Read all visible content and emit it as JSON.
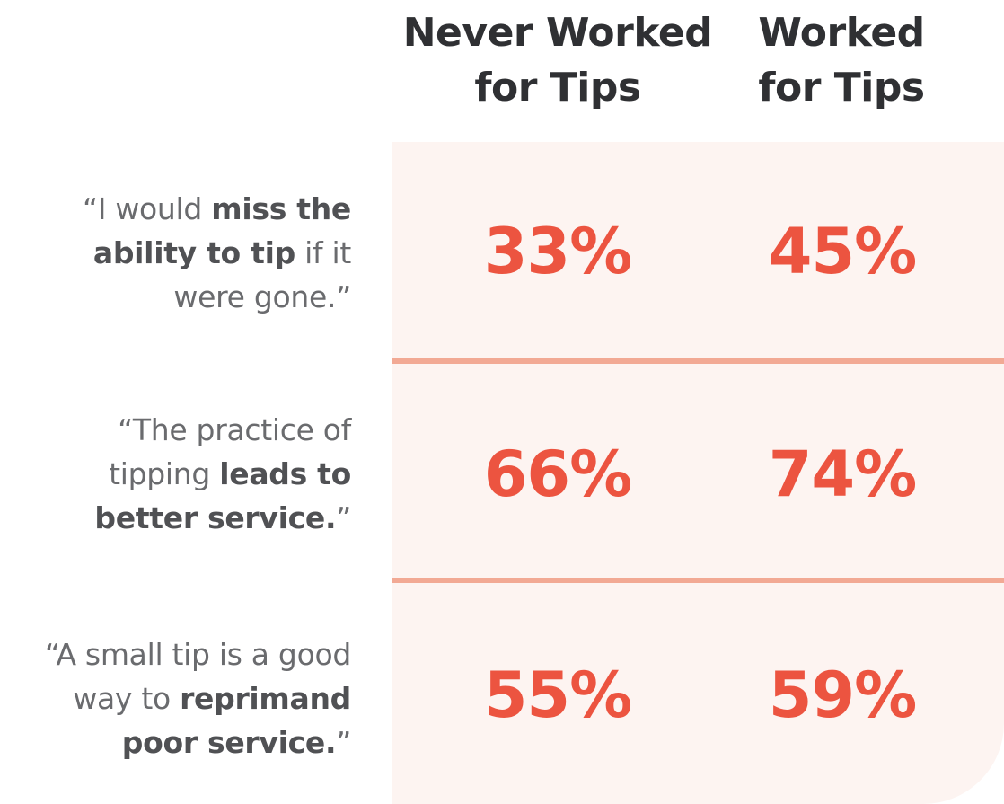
{
  "chart_data": {
    "type": "table",
    "columns": [
      "Never Worked for Tips",
      "Worked for Tips"
    ],
    "column_header_lines": [
      [
        "Never Worked",
        "for Tips"
      ],
      [
        "Worked",
        "for Tips"
      ]
    ],
    "rows": [
      {
        "statement": "“I would miss the ability to tip if it were gone.”",
        "statement_lines": [
          [
            {
              "t": "“I would ",
              "b": false
            },
            {
              "t": "miss the",
              "b": true
            }
          ],
          [
            {
              "t": "ability to tip",
              "b": true
            },
            {
              "t": " if it",
              "b": false
            }
          ],
          [
            {
              "t": "were gone.”",
              "b": false
            }
          ]
        ],
        "values": [
          33,
          45
        ],
        "labels": [
          "33%",
          "45%"
        ]
      },
      {
        "statement": "“The practice of tipping leads to better service.”",
        "statement_lines": [
          [
            {
              "t": "“The practice of",
              "b": false
            }
          ],
          [
            {
              "t": "tipping ",
              "b": false
            },
            {
              "t": "leads to",
              "b": true
            }
          ],
          [
            {
              "t": "better service.",
              "b": true
            },
            {
              "t": "”",
              "b": false
            }
          ]
        ],
        "values": [
          66,
          74
        ],
        "labels": [
          "66%",
          "74%"
        ]
      },
      {
        "statement": "“A small tip is a good way to reprimand poor service.”",
        "statement_lines": [
          [
            {
              "t": "“A small tip is a good",
              "b": false
            }
          ],
          [
            {
              "t": "way to ",
              "b": false
            },
            {
              "t": "reprimand",
              "b": true
            }
          ],
          [
            {
              "t": "poor service.",
              "b": true
            },
            {
              "t": "”",
              "b": false
            }
          ]
        ],
        "values": [
          55,
          59
        ],
        "labels": [
          "55%",
          "59%"
        ]
      }
    ],
    "unit": "%"
  },
  "colors": {
    "value_text": "#ec5440",
    "panel_background": "#fdf4f1",
    "divider": "#f2a994",
    "header_text": "#2f3033",
    "statement_text": "#6a6b6e"
  }
}
